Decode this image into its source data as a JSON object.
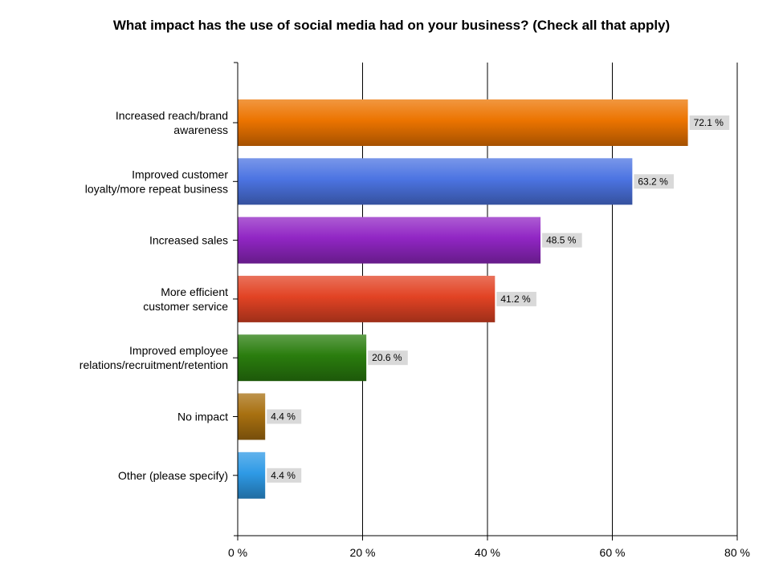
{
  "chart_data": {
    "type": "bar",
    "orientation": "horizontal",
    "title": "What impact has the use of social media had on your business? (Check all that apply)",
    "categories": [
      [
        "Increased reach/brand",
        "awareness"
      ],
      [
        "Improved customer",
        "loyalty/more repeat business"
      ],
      [
        "Increased sales"
      ],
      [
        "More efficient",
        "customer service"
      ],
      [
        "Improved employee",
        "relations/recruitment/retention"
      ],
      [
        "No impact"
      ],
      [
        "Other (please specify)"
      ]
    ],
    "values": [
      72.1,
      63.2,
      48.5,
      41.2,
      20.6,
      4.4,
      4.4
    ],
    "value_labels": [
      "72.1 %",
      "63.2 %",
      "48.5 %",
      "41.2 %",
      "20.6 %",
      "4.4 %",
      "4.4 %"
    ],
    "colors": [
      "#ec7400",
      "#4c74e2",
      "#9126c4",
      "#e24324",
      "#2a7d0e",
      "#a87010",
      "#2e9ae6"
    ],
    "xlim": [
      0,
      80
    ],
    "xticks": [
      0,
      20,
      40,
      60,
      80
    ],
    "xtick_labels": [
      "0 %",
      "20 %",
      "40 %",
      "60 %",
      "80 %"
    ],
    "grid": true
  }
}
